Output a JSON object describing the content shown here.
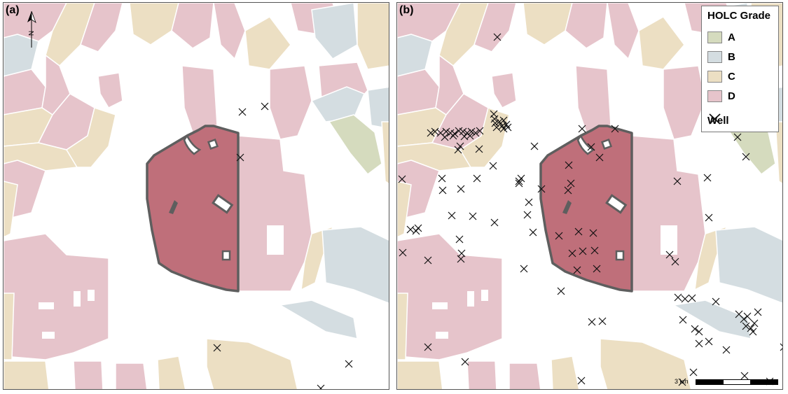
{
  "panels": [
    {
      "label": "(a)"
    },
    {
      "label": "(b)"
    }
  ],
  "north_arrow": {
    "letter": "N"
  },
  "legend": {
    "title": "HOLC Grade",
    "grades": [
      {
        "label": "A",
        "color": "#d5dbbe"
      },
      {
        "label": "B",
        "color": "#d4dde1"
      },
      {
        "label": "C",
        "color": "#ecdfc3"
      },
      {
        "label": "D",
        "color": "#e6c4cb"
      }
    ],
    "well_label": "Well"
  },
  "scale_bar": {
    "label": "3 km"
  },
  "colors": {
    "grade_a": "#d5dbbe",
    "grade_b": "#d4dde1",
    "grade_c": "#ecdfc3",
    "grade_d": "#e6c4cb",
    "highlight_fill": "#bf6f7a",
    "highlight_outline": "#5e5e5e",
    "well_mark": "#111111"
  }
}
